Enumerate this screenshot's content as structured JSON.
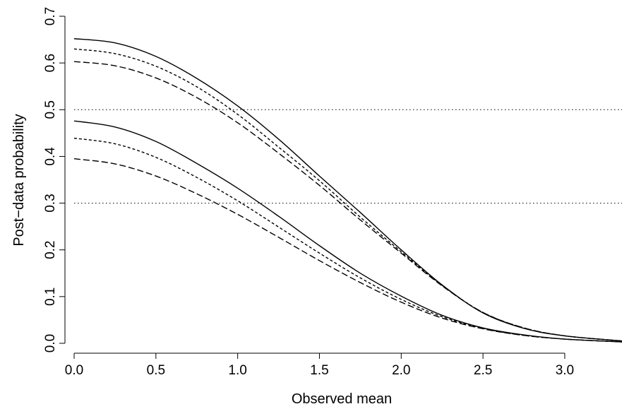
{
  "chart_data": {
    "type": "line",
    "xlabel": "Observed mean",
    "ylabel": "Post−data probability",
    "xlim": [
      0,
      3.35
    ],
    "ylim": [
      0,
      0.7
    ],
    "xticks": [
      "0.0",
      "0.5",
      "1.0",
      "1.5",
      "2.0",
      "2.5",
      "3.0"
    ],
    "yticks": [
      "0.0",
      "0.1",
      "0.2",
      "0.3",
      "0.4",
      "0.5",
      "0.6",
      "0.7"
    ],
    "grid": false,
    "reference_lines": [
      {
        "y": 0.5,
        "style": "dotted"
      },
      {
        "y": 0.3,
        "style": "dotted"
      }
    ],
    "series": [
      {
        "style": "solid",
        "color": "#000000",
        "x": [
          0,
          0.25,
          0.5,
          0.75,
          1.0,
          1.25,
          1.5,
          1.75,
          2.0,
          2.25,
          2.5,
          2.75,
          3.0,
          3.35
        ],
        "y": [
          0.652,
          0.643,
          0.614,
          0.567,
          0.508,
          0.437,
          0.358,
          0.28,
          0.2,
          0.125,
          0.065,
          0.032,
          0.016,
          0.005
        ]
      },
      {
        "style": "short-dash",
        "color": "#000000",
        "x": [
          0,
          0.25,
          0.5,
          0.75,
          1.0,
          1.25,
          1.5,
          1.75,
          2.0,
          2.25,
          2.5,
          2.75,
          3.0,
          3.35
        ],
        "y": [
          0.63,
          0.62,
          0.593,
          0.549,
          0.49,
          0.42,
          0.348,
          0.27,
          0.196,
          0.124,
          0.066,
          0.033,
          0.016,
          0.005
        ]
      },
      {
        "style": "long-dash",
        "color": "#000000",
        "x": [
          0,
          0.25,
          0.5,
          0.75,
          1.0,
          1.25,
          1.5,
          1.75,
          2.0,
          2.25,
          2.5,
          2.75,
          3.0,
          3.35
        ],
        "y": [
          0.603,
          0.594,
          0.568,
          0.526,
          0.472,
          0.407,
          0.338,
          0.264,
          0.193,
          0.123,
          0.066,
          0.033,
          0.016,
          0.005
        ]
      },
      {
        "style": "solid",
        "color": "#000000",
        "x": [
          0,
          0.25,
          0.5,
          0.75,
          1.0,
          1.25,
          1.5,
          1.75,
          2.0,
          2.25,
          2.5,
          2.75,
          3.0,
          3.35
        ],
        "y": [
          0.476,
          0.463,
          0.432,
          0.385,
          0.332,
          0.272,
          0.209,
          0.15,
          0.101,
          0.06,
          0.033,
          0.018,
          0.009,
          0.003
        ]
      },
      {
        "style": "short-dash",
        "color": "#000000",
        "x": [
          0,
          0.25,
          0.5,
          0.75,
          1.0,
          1.25,
          1.5,
          1.75,
          2.0,
          2.25,
          2.5,
          2.75,
          3.0,
          3.35
        ],
        "y": [
          0.439,
          0.427,
          0.398,
          0.355,
          0.305,
          0.249,
          0.193,
          0.14,
          0.094,
          0.057,
          0.032,
          0.017,
          0.009,
          0.003
        ]
      },
      {
        "style": "long-dash",
        "color": "#000000",
        "x": [
          0,
          0.25,
          0.5,
          0.75,
          1.0,
          1.25,
          1.5,
          1.75,
          2.0,
          2.25,
          2.5,
          2.75,
          3.0,
          3.35
        ],
        "y": [
          0.395,
          0.384,
          0.358,
          0.32,
          0.276,
          0.227,
          0.177,
          0.13,
          0.088,
          0.054,
          0.031,
          0.017,
          0.009,
          0.003
        ]
      }
    ]
  }
}
